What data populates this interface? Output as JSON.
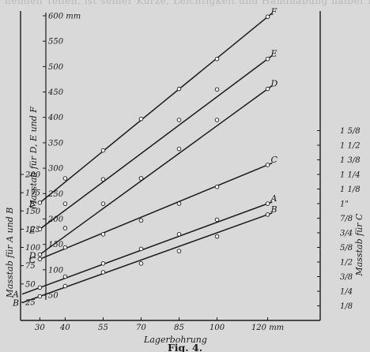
{
  "header_text": "nenden Teilen, ist seiner Kürze, Leichtigkeit und Handhabung halber im",
  "figure_caption": "Fig. 4.",
  "chart_data": {
    "type": "line",
    "grid": false,
    "xlabel": "Lagerbohrung",
    "x_ticks": [
      "30",
      "40",
      "55",
      "70",
      "85",
      "100",
      "120 mm"
    ],
    "x": [
      30,
      40,
      55,
      70,
      85,
      100,
      120
    ],
    "axes": {
      "left_outer": {
        "label": "Masstab für A und B",
        "ylim": [
          0,
          225
        ],
        "ticks": [
          "25",
          "50",
          "75",
          "100",
          "125",
          "150",
          "175",
          "200"
        ]
      },
      "left_inner": {
        "label": "Masstab für D, E und F",
        "ylim": [
          50,
          600
        ],
        "ticks": [
          "50",
          "100",
          "150",
          "200",
          "250",
          "300",
          "350",
          "400",
          "450",
          "500",
          "550",
          "600 mm"
        ]
      },
      "right": {
        "label": "Masstab für C",
        "ticks": [
          "1/8",
          "1/4",
          "3/8",
          "1/2",
          "5/8",
          "3/4",
          "7/8",
          "1\"",
          "1 1/8",
          "1 1/4",
          "1 3/8",
          "1 1/2",
          "1 5/8"
        ],
        "tick_values": [
          20,
          40,
          60,
          80,
          100,
          120,
          140,
          160,
          180,
          200,
          220,
          240,
          260
        ]
      }
    },
    "series": [
      {
        "name": "F",
        "axis": "left_inner",
        "values": [
          232,
          280,
          335,
          397,
          456,
          515,
          598
        ]
      },
      {
        "name": "E",
        "axis": "left_inner",
        "values": [
          180,
          230,
          278,
          280,
          395,
          455,
          515
        ]
      },
      {
        "name": "D",
        "axis": "left_inner",
        "values": [
          130,
          182,
          230,
          280,
          338,
          395,
          456
        ]
      },
      {
        "name": "C",
        "axis": "left_outer",
        "values": [
          84,
          100,
          118,
          137,
          160,
          183,
          213
        ]
      },
      {
        "name": "A",
        "axis": "left_outer",
        "values": [
          45,
          60,
          78,
          98,
          118,
          138,
          160
        ]
      },
      {
        "name": "B",
        "axis": "left_outer",
        "values": [
          33,
          47,
          66,
          78,
          95,
          115,
          145
        ]
      }
    ]
  }
}
